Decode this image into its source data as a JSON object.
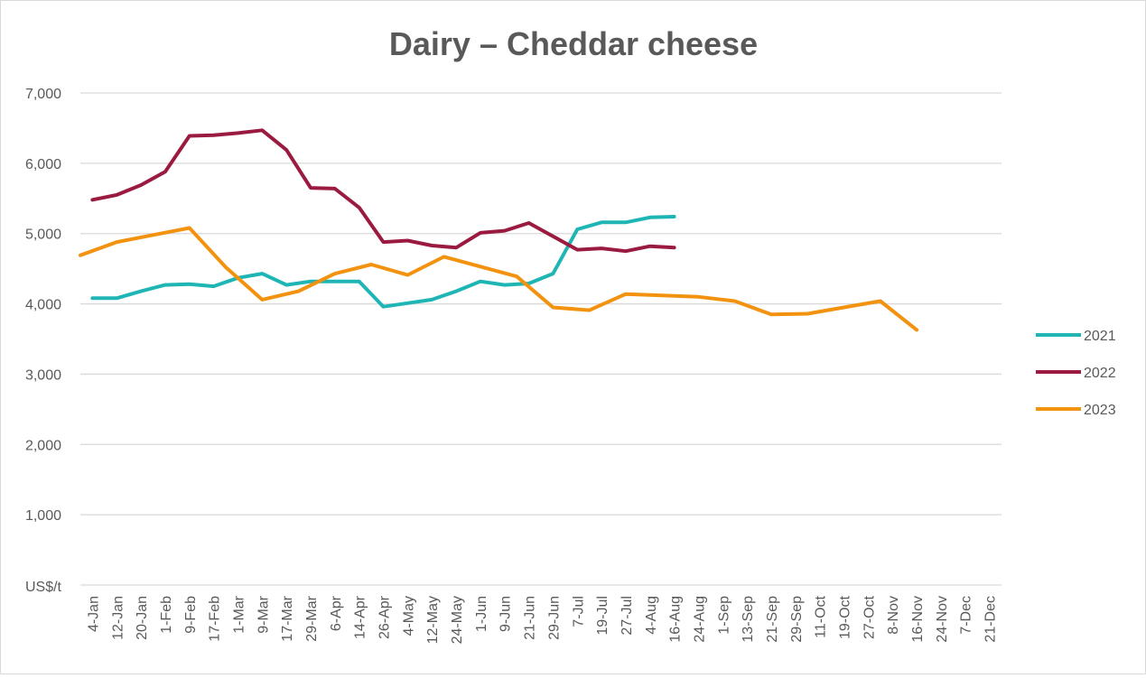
{
  "chart_data": {
    "type": "line",
    "title": "Dairy – Cheddar cheese",
    "ylabel": "US$/t",
    "xlabel": "",
    "ylim": [
      0,
      7000
    ],
    "yticks": [
      "1,000",
      "2,000",
      "3,000",
      "4,000",
      "5,000",
      "6,000",
      "7,000"
    ],
    "ytick_values": [
      1000,
      2000,
      3000,
      4000,
      5000,
      6000,
      7000
    ],
    "categories": [
      "4-Jan",
      "12-Jan",
      "20-Jan",
      "1-Feb",
      "9-Feb",
      "17-Feb",
      "1-Mar",
      "9-Mar",
      "17-Mar",
      "29-Mar",
      "6-Apr",
      "14-Apr",
      "26-Apr",
      "4-May",
      "12-May",
      "24-May",
      "1-Jun",
      "9-Jun",
      "21-Jun",
      "29-Jun",
      "7-Jul",
      "19-Jul",
      "27-Jul",
      "4-Aug",
      "16-Aug",
      "24-Aug",
      "1-Sep",
      "13-Sep",
      "21-Sep",
      "29-Sep",
      "11-Oct",
      "19-Oct",
      "27-Oct",
      "8-Nov",
      "16-Nov",
      "24-Nov",
      "7-Dec",
      "21-Dec"
    ],
    "legend_position": "right",
    "grid": true,
    "series": [
      {
        "name": "2021",
        "color": "#1fb5b5",
        "points": [
          [
            0.5,
            4080
          ],
          [
            1.5,
            4080
          ],
          [
            2.5,
            4180
          ],
          [
            3.5,
            4270
          ],
          [
            4.5,
            4280
          ],
          [
            5.5,
            4250
          ],
          [
            6.5,
            4370
          ],
          [
            7.5,
            4430
          ],
          [
            8.5,
            4270
          ],
          [
            9.5,
            4320
          ],
          [
            10.5,
            4320
          ],
          [
            11.5,
            4320
          ],
          [
            12.5,
            3960
          ],
          [
            13.5,
            4010
          ],
          [
            14.5,
            4060
          ],
          [
            15.5,
            4180
          ],
          [
            16.5,
            4320
          ],
          [
            17.5,
            4270
          ],
          [
            18.5,
            4290
          ],
          [
            19.5,
            4430
          ],
          [
            20.5,
            5060
          ],
          [
            21.5,
            5160
          ],
          [
            22.5,
            5160
          ],
          [
            23.5,
            5230
          ],
          [
            24.5,
            5240
          ]
        ]
      },
      {
        "name": "2022",
        "color": "#9b1b40",
        "points": [
          [
            0.5,
            5480
          ],
          [
            1.5,
            5550
          ],
          [
            2.5,
            5690
          ],
          [
            3.5,
            5880
          ],
          [
            4.5,
            6390
          ],
          [
            5.5,
            6400
          ],
          [
            6.5,
            6430
          ],
          [
            7.5,
            6470
          ],
          [
            8.5,
            6190
          ],
          [
            9.5,
            5650
          ],
          [
            10.5,
            5640
          ],
          [
            11.5,
            5370
          ],
          [
            12.5,
            4880
          ],
          [
            13.5,
            4900
          ],
          [
            14.5,
            4830
          ],
          [
            15.5,
            4800
          ],
          [
            16.5,
            5010
          ],
          [
            17.5,
            5040
          ],
          [
            18.5,
            5150
          ],
          [
            19.5,
            4960
          ],
          [
            20.5,
            4770
          ],
          [
            21.5,
            4790
          ],
          [
            22.5,
            4750
          ],
          [
            23.5,
            4820
          ],
          [
            24.5,
            4800
          ]
        ]
      },
      {
        "name": "2023",
        "color": "#f2920f",
        "points": [
          [
            0,
            4690
          ],
          [
            1.5,
            4880
          ],
          [
            3,
            4980
          ],
          [
            4.5,
            5080
          ],
          [
            6,
            4520
          ],
          [
            7.5,
            4060
          ],
          [
            9,
            4180
          ],
          [
            10.5,
            4430
          ],
          [
            12,
            4560
          ],
          [
            13.5,
            4410
          ],
          [
            15,
            4670
          ],
          [
            16.5,
            4530
          ],
          [
            18,
            4390
          ],
          [
            19.5,
            3950
          ],
          [
            21,
            3910
          ],
          [
            22.5,
            4140
          ],
          [
            24,
            4120
          ],
          [
            25.5,
            4100
          ],
          [
            27,
            4040
          ],
          [
            28.5,
            3850
          ],
          [
            30,
            3860
          ],
          [
            31.5,
            3950
          ],
          [
            33,
            4040
          ],
          [
            34.5,
            3630
          ]
        ]
      }
    ]
  }
}
